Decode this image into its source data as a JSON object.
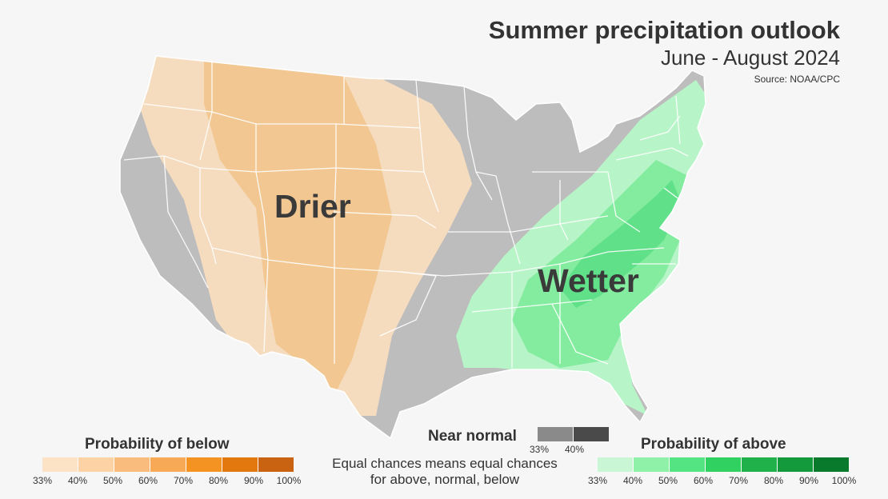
{
  "header": {
    "title": "Summer precipitation outlook",
    "subtitle": "June - August 2024",
    "source": "Source: NOAA/CPC"
  },
  "labels": {
    "drier": "Drier",
    "wetter": "Wetter"
  },
  "legend": {
    "below": {
      "title": "Probability of below",
      "ticks": [
        "33%",
        "40%",
        "50%",
        "60%",
        "70%",
        "80%",
        "90%",
        "100%"
      ],
      "colors": [
        "#fde3c6",
        "#fdd3a5",
        "#f9bc7c",
        "#f7a955",
        "#f59322",
        "#e3790e",
        "#c96312"
      ]
    },
    "near": {
      "title": "Near normal",
      "ticks": [
        "33%",
        "40%"
      ],
      "colors": [
        "#8a8a8a",
        "#4a4a4a"
      ]
    },
    "above": {
      "title": "Probability of above",
      "ticks": [
        "33%",
        "40%",
        "50%",
        "60%",
        "70%",
        "80%",
        "90%",
        "100%"
      ],
      "colors": [
        "#c9f7d5",
        "#8ff0a8",
        "#55e482",
        "#30d161",
        "#20b14b",
        "#139a3d",
        "#097a2b"
      ]
    },
    "note": "Equal chances means equal chances for above, normal, below"
  },
  "map_colors": {
    "land_equal_chances": "#bdbdbd",
    "below_33_40": "#f6dcbf",
    "below_40_50": "#f2c791",
    "above_33_40": "#b7f4c7",
    "above_40_50": "#84ec9f",
    "above_50_60": "#5fe089",
    "border": "#ffffff"
  }
}
